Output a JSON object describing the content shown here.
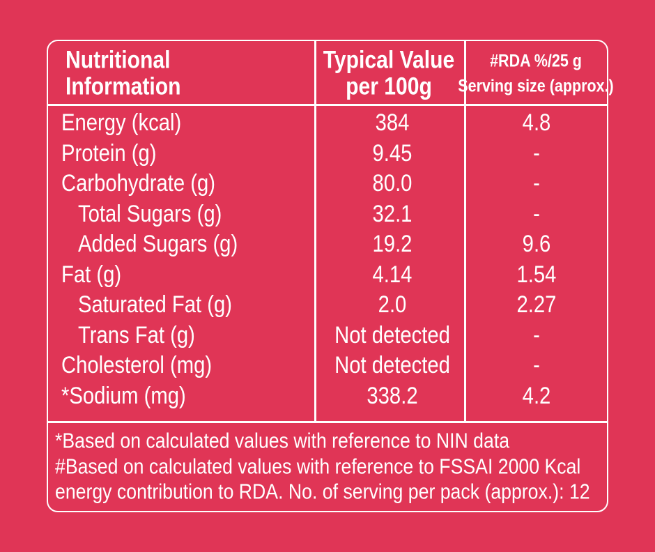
{
  "header": {
    "nutrient": [
      "Nutritional",
      "Information"
    ],
    "per_100g": [
      "Typical Value",
      "per 100g"
    ],
    "rda": [
      "#RDA %/25 g",
      "Serving size (approx.)"
    ]
  },
  "rows": [
    {
      "nutrient": "Energy (kcal)",
      "per_100g": "384",
      "rda": "4.8",
      "indent": false
    },
    {
      "nutrient": "Protein (g)",
      "per_100g": "9.45",
      "rda": "-",
      "indent": false
    },
    {
      "nutrient": "Carbohydrate (g)",
      "per_100g": "80.0",
      "rda": "-",
      "indent": false
    },
    {
      "nutrient": "Total Sugars (g)",
      "per_100g": "32.1",
      "rda": "-",
      "indent": true
    },
    {
      "nutrient": "Added Sugars (g)",
      "per_100g": "19.2",
      "rda": "9.6",
      "indent": true
    },
    {
      "nutrient": "Fat (g)",
      "per_100g": "4.14",
      "rda": "1.54",
      "indent": false
    },
    {
      "nutrient": "Saturated Fat (g)",
      "per_100g": "2.0",
      "rda": "2.27",
      "indent": true
    },
    {
      "nutrient": "Trans Fat (g)",
      "per_100g": "Not detected",
      "rda": "-",
      "indent": true
    },
    {
      "nutrient": "Cholesterol (mg)",
      "per_100g": "Not detected",
      "rda": "-",
      "indent": false
    },
    {
      "nutrient": "*Sodium (mg)",
      "per_100g": "338.2",
      "rda": "4.2",
      "indent": false
    }
  ],
  "footnotes": [
    "*Based on calculated values with reference to NIN data",
    "#Based on calculated values with reference to FSSAI 2000 Kcal",
    "energy contribution to RDA.  No. of serving per pack (approx.): 12"
  ]
}
